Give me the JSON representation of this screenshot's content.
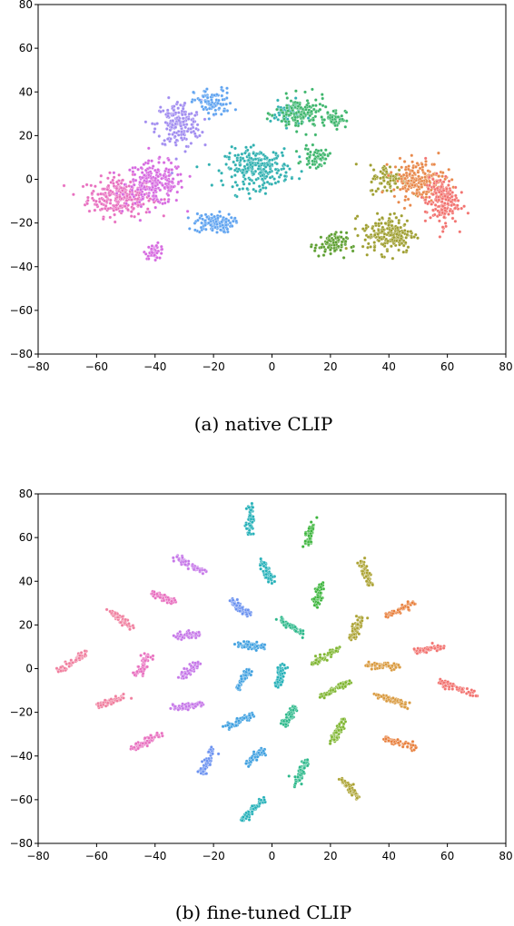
{
  "chart_data": [
    {
      "type": "scatter",
      "caption": "(a) native CLIP",
      "xlim": [
        -80,
        80
      ],
      "ylim": [
        -80,
        80
      ],
      "xticks": [
        -80,
        -60,
        -40,
        -20,
        0,
        20,
        40,
        60,
        80
      ],
      "yticks": [
        -80,
        -60,
        -40,
        -20,
        0,
        20,
        40,
        60,
        80
      ],
      "grid": false,
      "legend": "none",
      "series": [
        {
          "color": "#e86fbf",
          "clusters": [
            [
              -52,
              -8,
              10,
              8,
              260
            ]
          ]
        },
        {
          "color": "#d669e0",
          "clusters": [
            [
              -40,
              -2,
              9,
              9,
              220
            ],
            [
              -40,
              -33,
              3,
              3,
              40
            ]
          ]
        },
        {
          "color": "#a18cf0",
          "clusters": [
            [
              -32,
              25,
              7,
              10,
              180
            ]
          ]
        },
        {
          "color": "#5fa3f0",
          "clusters": [
            [
              -20,
              -20,
              6,
              4,
              120
            ],
            [
              -20,
              35,
              6,
              6,
              90
            ]
          ]
        },
        {
          "color": "#2fb0b0",
          "clusters": [
            [
              -5,
              5,
              10,
              8,
              260
            ],
            [
              5,
              30,
              5,
              5,
              60
            ]
          ]
        },
        {
          "color": "#3cb56b",
          "clusters": [
            [
              10,
              30,
              8,
              7,
              140
            ],
            [
              15,
              10,
              4,
              4,
              60
            ],
            [
              22,
              28,
              3,
              4,
              50
            ]
          ]
        },
        {
          "color": "#5c9e2f",
          "clusters": [
            [
              20,
              -30,
              5,
              5,
              80
            ]
          ]
        },
        {
          "color": "#9e9e2f",
          "clusters": [
            [
              40,
              -25,
              8,
              8,
              200
            ],
            [
              40,
              0,
              6,
              6,
              80
            ]
          ]
        },
        {
          "color": "#e8884a",
          "clusters": [
            [
              50,
              0,
              8,
              8,
              200
            ]
          ]
        },
        {
          "color": "#f2726f",
          "clusters": [
            [
              58,
              -10,
              5,
              10,
              180
            ]
          ]
        }
      ]
    },
    {
      "type": "scatter",
      "caption": "(b) fine-tuned CLIP",
      "xlim": [
        -80,
        80
      ],
      "ylim": [
        -80,
        80
      ],
      "xticks": [
        -80,
        -60,
        -40,
        -20,
        0,
        20,
        40,
        60,
        80
      ],
      "yticks": [
        -80,
        -60,
        -40,
        -20,
        0,
        20,
        40,
        60,
        80
      ],
      "grid": false,
      "legend": "none",
      "series": [
        {
          "color": "#f07e9e",
          "clusters": [
            [
              -68,
              3,
              -68,
              3,
              -73,
              -1,
              -64,
              7,
              60
            ],
            [
              -55,
              -15,
              -55,
              -15,
              -60,
              -17,
              -50,
              -13,
              60
            ],
            [
              -52,
              23,
              -52,
              23,
              -56,
              27,
              -48,
              19,
              60
            ]
          ]
        },
        {
          "color": "#e86fbf",
          "clusters": [
            [
              -43,
              -33,
              -43,
              -33,
              -48,
              -37,
              -38,
              -30,
              60
            ],
            [
              -44,
              2,
              -44,
              2,
              -46,
              -3,
              -42,
              7,
              60
            ],
            [
              -37,
              33,
              -37,
              33,
              -41,
              35,
              -33,
              30,
              60
            ]
          ]
        },
        {
          "color": "#c576e8",
          "clusters": [
            [
              -28,
              48,
              -28,
              48,
              -33,
              51,
              -23,
              44,
              60
            ],
            [
              -29,
              15,
              -29,
              15,
              -33,
              15,
              -25,
              16,
              60
            ],
            [
              -28,
              -1,
              -28,
              -1,
              -31,
              -4,
              -25,
              3,
              60
            ],
            [
              -29,
              -17,
              -29,
              -17,
              -34,
              -18,
              -24,
              -16,
              60
            ]
          ]
        },
        {
          "color": "#6b92f0",
          "clusters": [
            [
              -22,
              -43,
              -22,
              -43,
              -24,
              -48,
              -20,
              -37,
              60
            ],
            [
              -11,
              28,
              -11,
              28,
              -14,
              31,
              -8,
              25,
              60
            ]
          ]
        },
        {
          "color": "#3fa0e0",
          "clusters": [
            [
              -10,
              -5,
              -10,
              -5,
              -12,
              -9,
              -8,
              -1,
              60
            ],
            [
              -11,
              -24,
              -11,
              -24,
              -15,
              -27,
              -7,
              -21,
              60
            ],
            [
              -7,
              10,
              -7,
              10,
              -11,
              11,
              -3,
              10,
              60
            ],
            [
              -6,
              -40,
              -6,
              -40,
              -9,
              -44,
              -3,
              -37,
              60
            ]
          ]
        },
        {
          "color": "#24b0b8",
          "clusters": [
            [
              -7,
              67,
              -7,
              67,
              -8,
              61,
              -7,
              74,
              60
            ],
            [
              -7,
              -65,
              -7,
              -65,
              -11,
              -70,
              -3,
              -60,
              60
            ],
            [
              -2,
              45,
              -2,
              45,
              -4,
              50,
              0,
              40,
              60
            ],
            [
              3,
              -3,
              3,
              -3,
              2,
              -8,
              4,
              2,
              60
            ]
          ]
        },
        {
          "color": "#2cb88a",
          "clusters": [
            [
              7,
              19,
              7,
              19,
              3,
              22,
              11,
              16,
              60
            ],
            [
              6,
              -22,
              6,
              -22,
              4,
              -26,
              8,
              -17,
              60
            ],
            [
              10,
              -48,
              10,
              -48,
              8,
              -53,
              12,
              -42,
              60
            ]
          ]
        },
        {
          "color": "#3cb53c",
          "clusters": [
            [
              13,
              62,
              13,
              62,
              12,
              56,
              14,
              68,
              60
            ],
            [
              16,
              34,
              16,
              34,
              15,
              29,
              17,
              39,
              60
            ]
          ]
        },
        {
          "color": "#7eb52f",
          "clusters": [
            [
              18,
              5,
              18,
              5,
              14,
              2,
              22,
              9,
              60
            ],
            [
              21,
              -9,
              21,
              -9,
              17,
              -13,
              26,
              -6,
              60
            ],
            [
              23,
              -28,
              23,
              -28,
              21,
              -33,
              25,
              -23,
              60
            ]
          ]
        },
        {
          "color": "#aba232",
          "clusters": [
            [
              29,
              18,
              29,
              18,
              27,
              13,
              31,
              24,
              60
            ],
            [
              32,
              44,
              32,
              44,
              30,
              50,
              34,
              38,
              60
            ],
            [
              27,
              -55,
              27,
              -55,
              24,
              -51,
              30,
              -60,
              60
            ]
          ]
        },
        {
          "color": "#d99a3f",
          "clusters": [
            [
              37,
              2,
              37,
              2,
              32,
              2,
              43,
              1,
              60
            ],
            [
              41,
              -14,
              41,
              -14,
              36,
              -12,
              46,
              -17,
              60
            ]
          ]
        },
        {
          "color": "#e87f3c",
          "clusters": [
            [
              44,
              -34,
              44,
              -34,
              38,
              -32,
              49,
              -36,
              60
            ],
            [
              44,
              27,
              44,
              27,
              39,
              24,
              49,
              30,
              60
            ]
          ]
        },
        {
          "color": "#f2726f",
          "clusters": [
            [
              54,
              9,
              54,
              9,
              49,
              8,
              59,
              10,
              60
            ],
            [
              64,
              -9,
              64,
              -9,
              57,
              -6,
              70,
              -12,
              60
            ]
          ]
        }
      ]
    }
  ]
}
